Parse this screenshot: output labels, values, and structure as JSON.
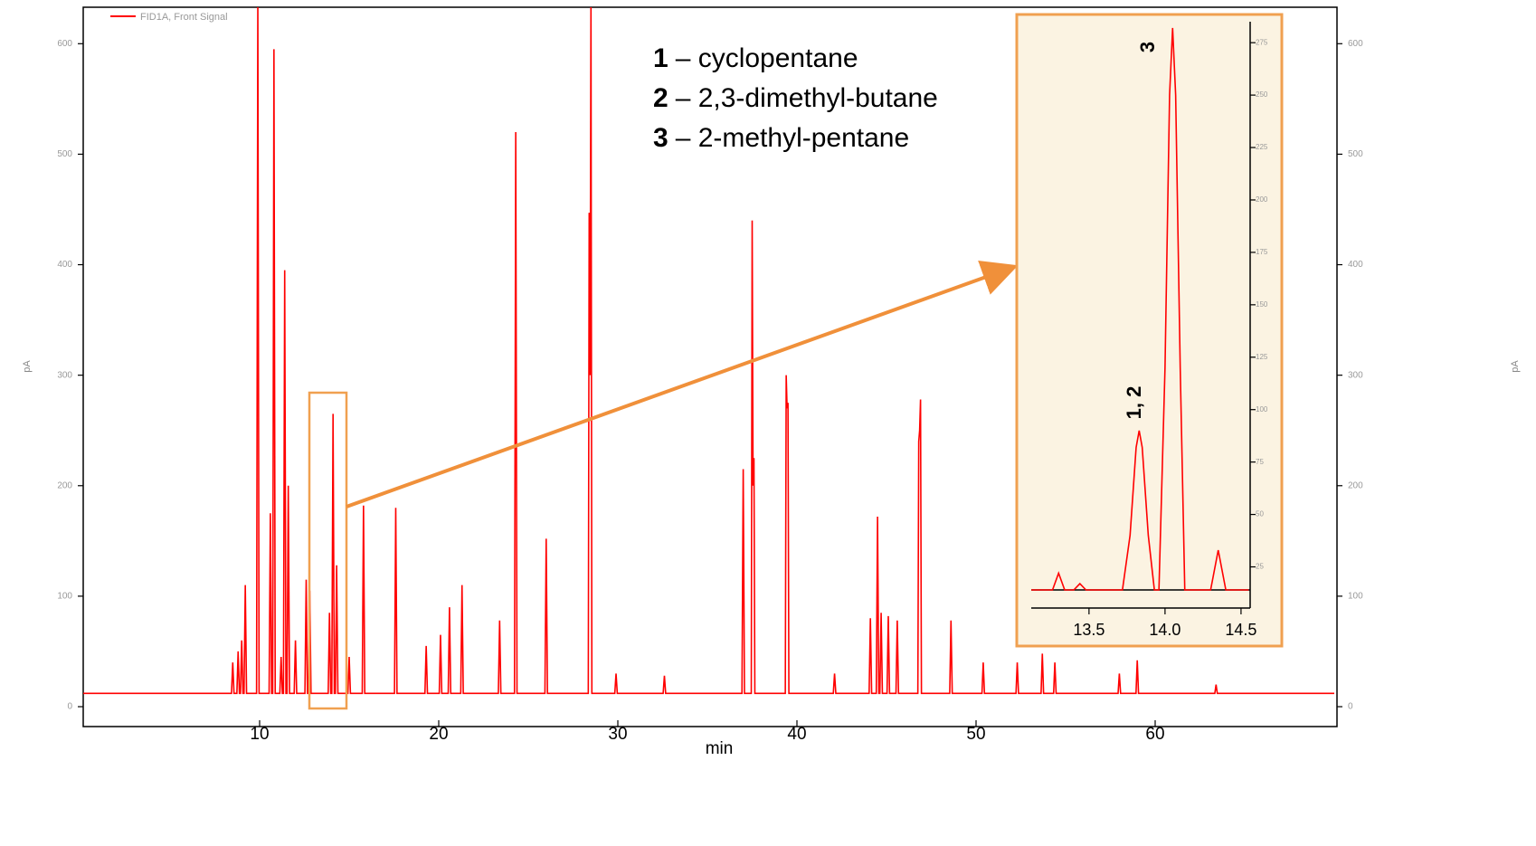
{
  "chart_data": [
    {
      "type": "line",
      "x_label": "min",
      "y_label": "pA",
      "xlim": [
        0,
        70
      ],
      "ylim": [
        -18,
        633
      ],
      "xticks": [
        10,
        20,
        30,
        40,
        50,
        60
      ],
      "yticks": [
        0,
        100,
        200,
        300,
        400,
        500,
        600
      ],
      "labels": [
        {
          "number": "1",
          "name": "– cyclopentane"
        },
        {
          "number": "2",
          "name": "– 2,3-dimethyl-butane"
        },
        {
          "number": "3",
          "name": "– 2-methyl-pentane"
        }
      ],
      "x": [
        0,
        8.43,
        8.5,
        8.57,
        8.73,
        8.8,
        8.87,
        8.93,
        9.0,
        9.07,
        9.13,
        9.2,
        9.27,
        9.83,
        9.9,
        9.97,
        10.53,
        10.6,
        10.67,
        10.73,
        10.8,
        10.87,
        11.13,
        11.2,
        11.27,
        11.33,
        11.4,
        11.47,
        11.53,
        11.6,
        11.67,
        11.93,
        12.0,
        12.07,
        12.53,
        12.6,
        12.67,
        12.73,
        12.8,
        12.87,
        13.83,
        13.9,
        13.97,
        14.03,
        14.1,
        14.17,
        14.23,
        14.3,
        14.37,
        14.93,
        15.0,
        15.07,
        15.73,
        15.8,
        15.87,
        17.53,
        17.6,
        17.67,
        19.23,
        19.3,
        19.37,
        20.03,
        20.1,
        20.17,
        20.53,
        20.6,
        20.67,
        21.23,
        21.3,
        21.37,
        23.33,
        23.4,
        23.47,
        24.23,
        24.3,
        24.37,
        25.93,
        26.0,
        26.07,
        28.35,
        28.4,
        28.45,
        28.5,
        28.55,
        29.83,
        29.9,
        29.97,
        32.53,
        32.6,
        32.67,
        36.93,
        37.0,
        37.07,
        37.45,
        37.5,
        37.55,
        37.6,
        37.65,
        39.35,
        39.4,
        39.45,
        39.5,
        39.55,
        42.03,
        42.1,
        42.17,
        44.03,
        44.1,
        44.17,
        44.43,
        44.5,
        44.57,
        44.63,
        44.7,
        44.77,
        45.03,
        45.1,
        45.17,
        45.53,
        45.6,
        45.67,
        46.75,
        46.8,
        46.85,
        46.9,
        46.95,
        48.53,
        48.6,
        48.67,
        50.33,
        50.4,
        50.47,
        52.23,
        52.3,
        52.37,
        53.63,
        53.7,
        53.77,
        54.33,
        54.4,
        54.47,
        57.93,
        58.0,
        58.07,
        58.93,
        59.0,
        59.07,
        63.33,
        63.4,
        63.47,
        70
      ],
      "series": [
        {
          "name": "FID1A, Front Signal",
          "color": "#ff0000",
          "values": [
            12,
            12,
            40,
            12,
            12,
            50,
            12,
            12,
            60,
            12,
            12,
            110,
            12,
            12,
            640,
            12,
            12,
            175,
            12,
            12,
            595,
            12,
            12,
            45,
            12,
            12,
            395,
            12,
            12,
            200,
            12,
            12,
            60,
            12,
            12,
            115,
            12,
            12,
            105,
            12,
            12,
            85,
            12,
            12,
            265,
            12,
            12,
            128,
            12,
            12,
            45,
            12,
            12,
            182,
            12,
            12,
            180,
            12,
            12,
            55,
            12,
            12,
            65,
            12,
            12,
            90,
            12,
            12,
            110,
            12,
            12,
            78,
            12,
            12,
            520,
            12,
            12,
            152,
            12,
            12,
            447,
            300,
            640,
            12,
            12,
            30,
            12,
            12,
            28,
            12,
            12,
            215,
            12,
            12,
            440,
            200,
            225,
            12,
            12,
            300,
            270,
            275,
            12,
            12,
            30,
            12,
            12,
            80,
            12,
            12,
            172,
            12,
            12,
            85,
            12,
            12,
            82,
            12,
            12,
            78,
            12,
            12,
            240,
            250,
            278,
            12,
            12,
            78,
            12,
            12,
            40,
            12,
            12,
            40,
            12,
            12,
            48,
            12,
            12,
            40,
            12,
            12,
            30,
            12,
            12,
            42,
            12,
            12,
            20,
            12,
            12
          ]
        }
      ]
    },
    {
      "type": "line",
      "xlim": [
        13.12,
        14.56
      ],
      "ylim": [
        14,
        285
      ],
      "xticks": [
        13.5,
        {
          "value": 14,
          "label": "14.0"
        },
        14.5
      ],
      "yticks": [
        25,
        50,
        75,
        100,
        125,
        150,
        175,
        200,
        225,
        250,
        275
      ],
      "annotations": [
        "3",
        "1, 2"
      ],
      "x": [
        13.12,
        13.26,
        13.3,
        13.34,
        13.4,
        13.44,
        13.48,
        13.72,
        13.77,
        13.81,
        13.83,
        13.85,
        13.89,
        13.93,
        13.96,
        14.0,
        14.03,
        14.05,
        14.07,
        14.1,
        14.13,
        14.3,
        14.35,
        14.4,
        14.55
      ],
      "series": [
        {
          "color": "#ff0000",
          "values": [
            14,
            14,
            22,
            14,
            14,
            17,
            14,
            14,
            40,
            82,
            90,
            82,
            40,
            14,
            14,
            120,
            250,
            282,
            250,
            120,
            14,
            14,
            33,
            14,
            14
          ]
        }
      ]
    }
  ]
}
